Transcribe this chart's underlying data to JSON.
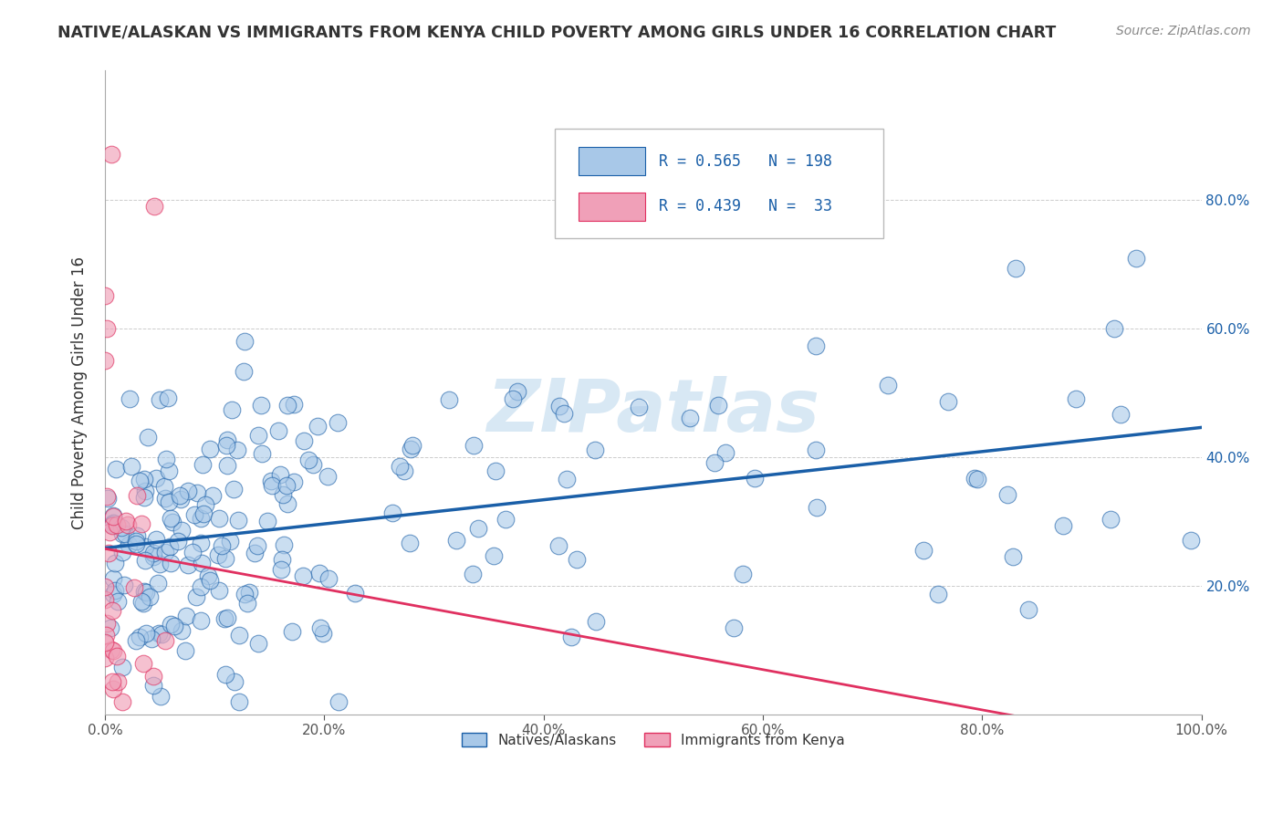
{
  "title": "NATIVE/ALASKAN VS IMMIGRANTS FROM KENYA CHILD POVERTY AMONG GIRLS UNDER 16 CORRELATION CHART",
  "source": "Source: ZipAtlas.com",
  "ylabel": "Child Poverty Among Girls Under 16",
  "watermark": "ZIPatlas",
  "xlim": [
    0.0,
    1.0
  ],
  "ylim": [
    0.0,
    1.0
  ],
  "xticklabels": [
    "0.0%",
    "20.0%",
    "40.0%",
    "60.0%",
    "80.0%",
    "100.0%"
  ],
  "yticklabels_right": [
    "20.0%",
    "40.0%",
    "60.0%",
    "80.0%"
  ],
  "blue_R": 0.565,
  "blue_N": 198,
  "pink_R": 0.439,
  "pink_N": 33,
  "blue_color": "#a8c8e8",
  "pink_color": "#f0a0b8",
  "blue_line_color": "#1a5fa8",
  "pink_line_color": "#e03060",
  "title_color": "#333333",
  "legend_R_color": "#1a5fa8",
  "right_axis_color": "#1a5fa8",
  "background_color": "#ffffff",
  "grid_color": "#cccccc",
  "watermark_color": "#d8e8f4",
  "legend_labels": [
    "Natives/Alaskans",
    "Immigrants from Kenya"
  ],
  "figsize": [
    14.06,
    8.92
  ],
  "dpi": 100
}
